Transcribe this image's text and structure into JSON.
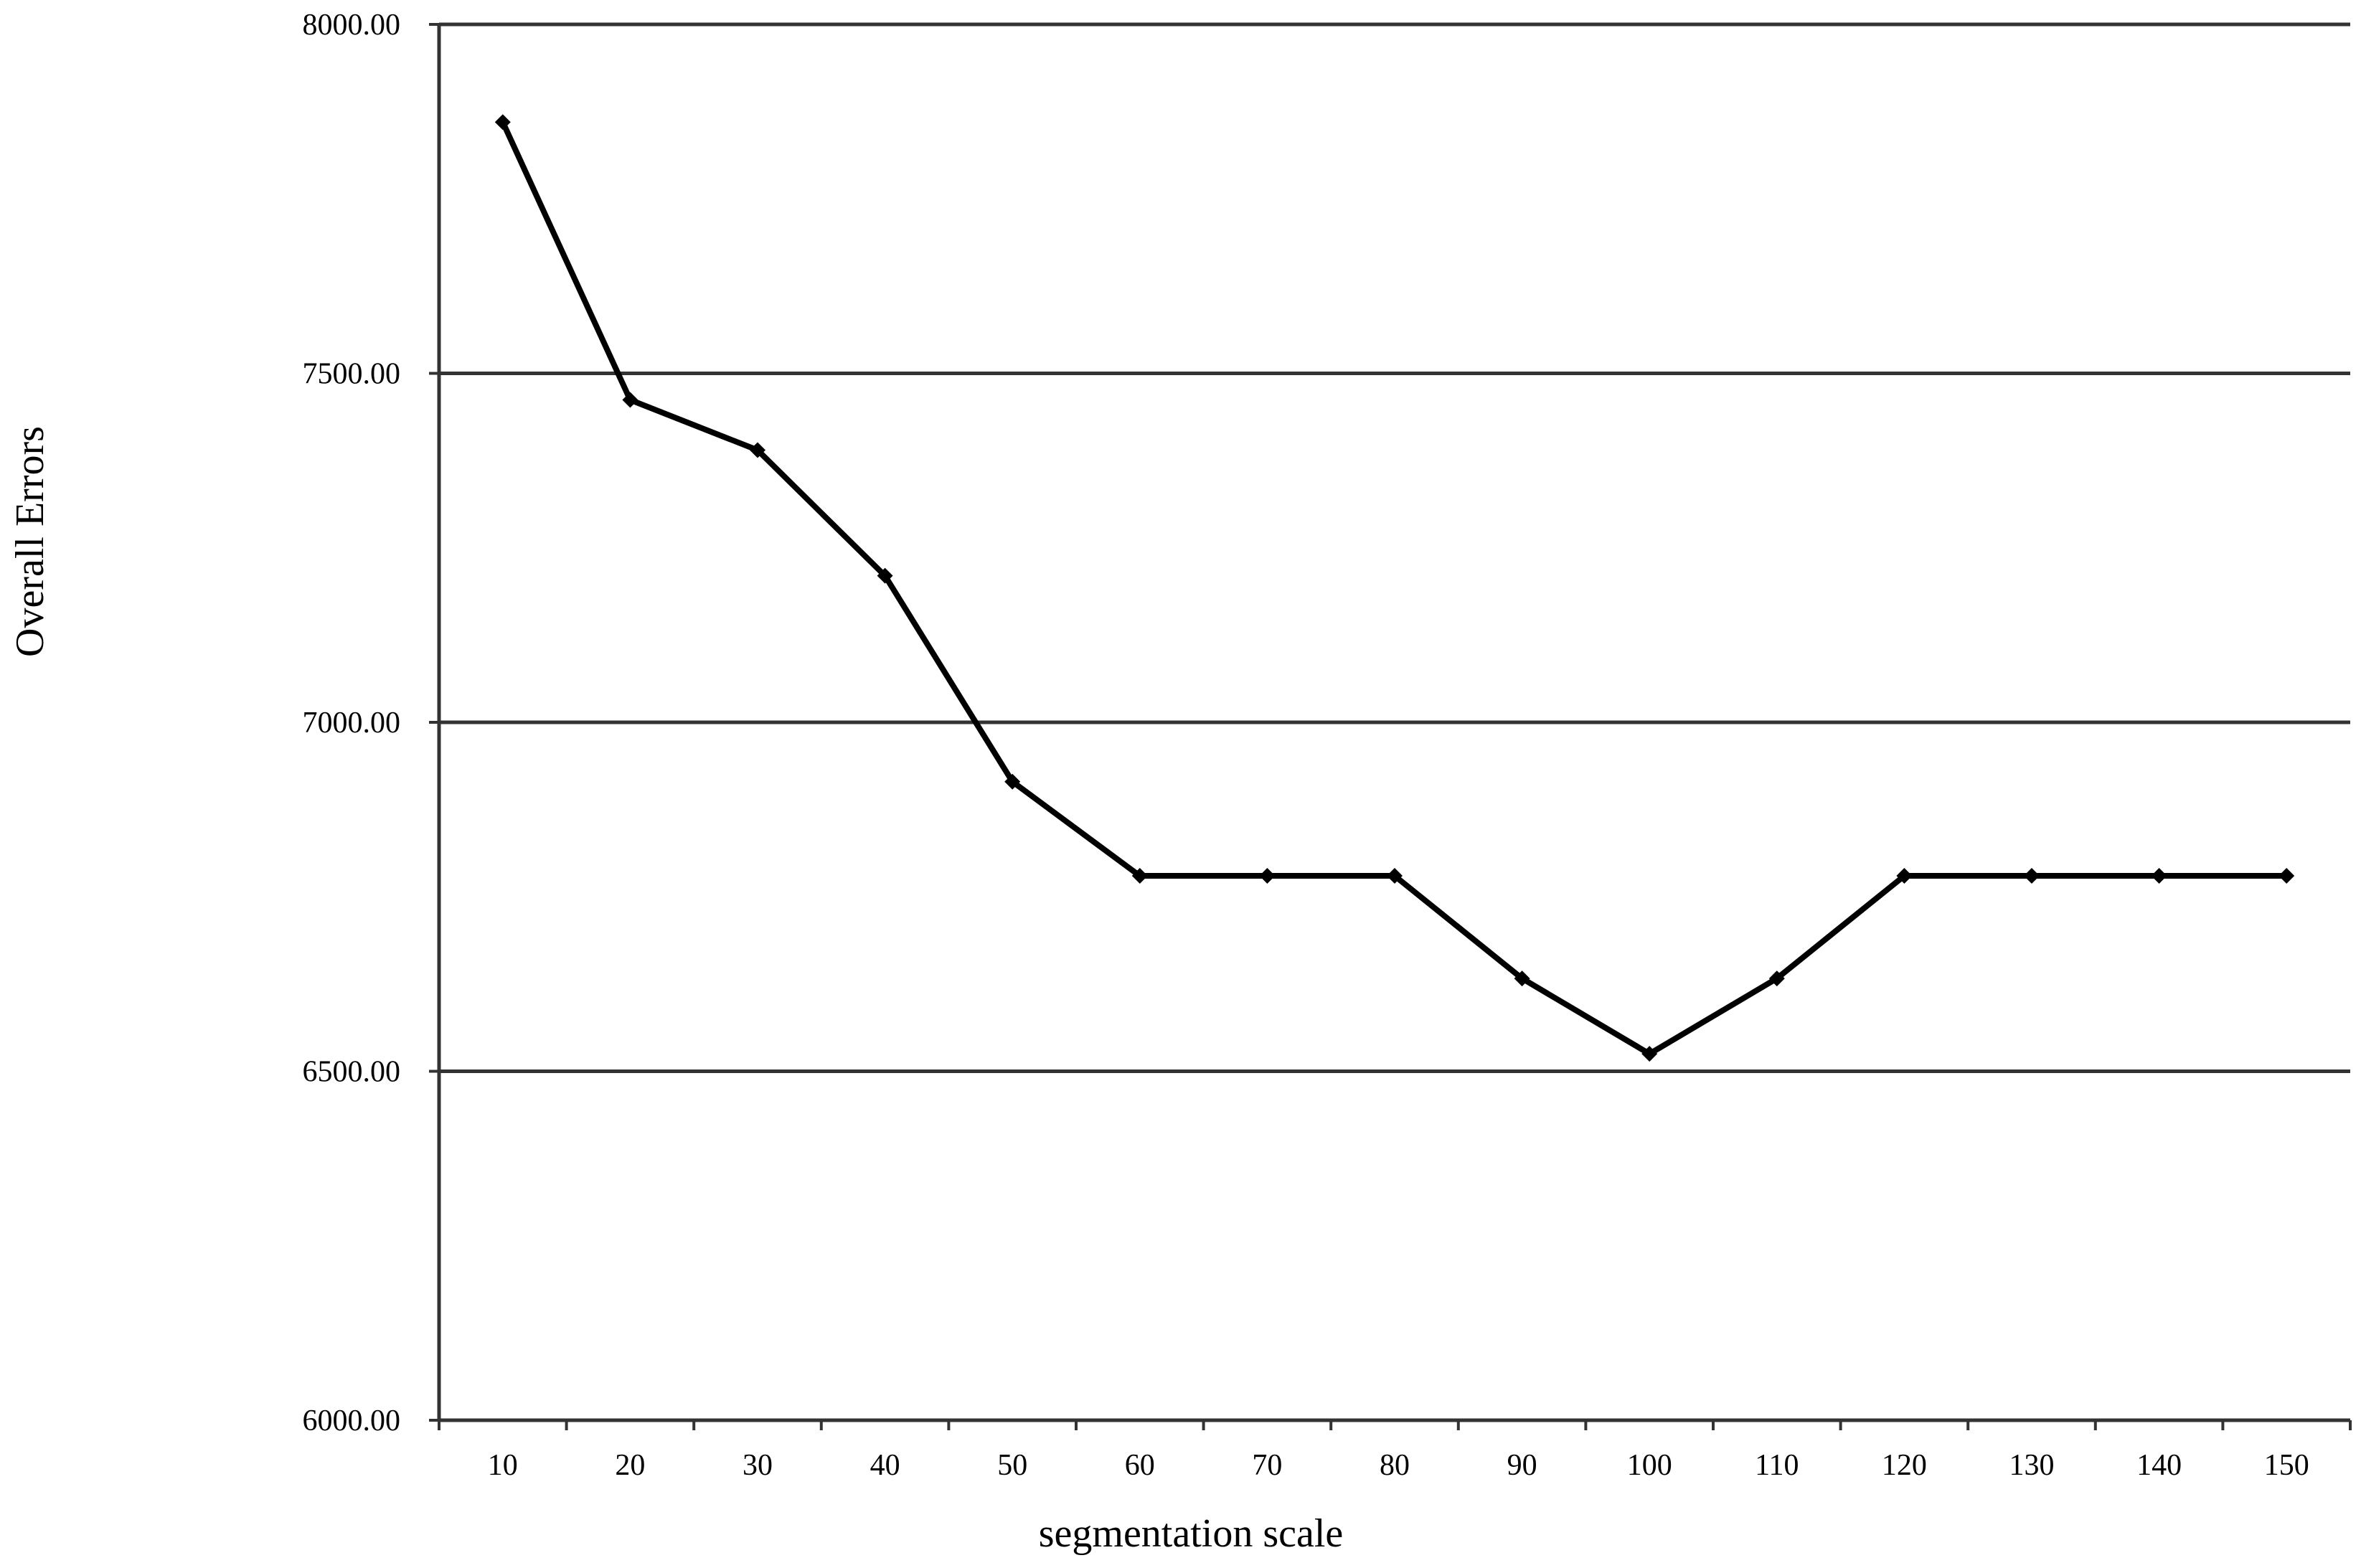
{
  "chart_data": {
    "type": "line",
    "title": "",
    "xlabel": "segmentation scale",
    "ylabel": "Overall Errors",
    "ylim": [
      6000,
      8000
    ],
    "yticks": [
      "6000.00",
      "6500.00",
      "7000.00",
      "7500.00",
      "8000.00"
    ],
    "grid": true,
    "legend": "none",
    "x": [
      "10",
      "20",
      "30",
      "40",
      "50",
      "60",
      "70",
      "80",
      "90",
      "100",
      "110",
      "120",
      "130",
      "140",
      "150"
    ],
    "series": [
      {
        "values": [
          7860,
          7462,
          7390,
          7210,
          6915,
          6780,
          6780,
          6780,
          6633,
          6525,
          6633,
          6780,
          6780,
          6780,
          6780
        ],
        "color": "#000000"
      }
    ]
  }
}
